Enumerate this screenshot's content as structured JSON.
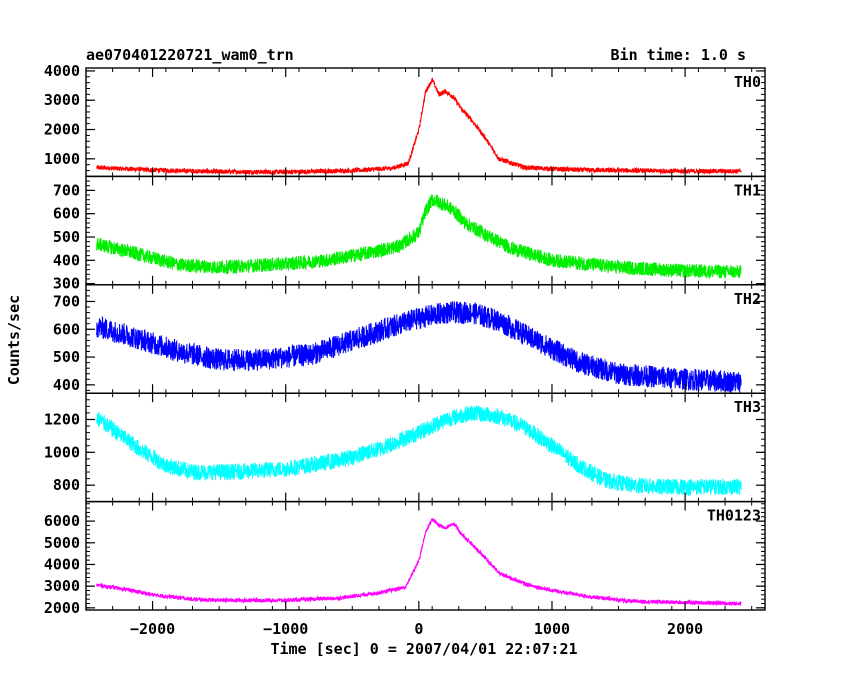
{
  "header": {
    "title": "ae070401220721_wam0_trn",
    "bin_time": "Bin time: 1.0 s"
  },
  "axes": {
    "ylabel": "Counts/sec",
    "xlabel": "Time [sec] 0 = 2007/04/01 22:07:21",
    "xlim": [
      -2500,
      2600
    ],
    "xticks": [
      -2000,
      -1000,
      0,
      1000,
      2000
    ],
    "xtick_labels": [
      "−2000",
      "−1000",
      "0",
      "1000",
      "2000"
    ]
  },
  "chart_data": [
    {
      "type": "line",
      "name": "TH0",
      "color": "#ff0000",
      "ylim": [
        400,
        4100
      ],
      "yticks": [
        1000,
        2000,
        3000,
        4000
      ],
      "noise": 80,
      "x": [
        -2420,
        -2000,
        -1500,
        -1000,
        -500,
        -200,
        -80,
        0,
        50,
        100,
        150,
        200,
        260,
        320,
        400,
        500,
        600,
        800,
        1200,
        1600,
        2000,
        2420
      ],
      "values": [
        700,
        620,
        560,
        550,
        600,
        680,
        850,
        2000,
        3300,
        3700,
        3200,
        3300,
        3100,
        2700,
        2300,
        1700,
        1000,
        700,
        620,
        600,
        580,
        580
      ]
    },
    {
      "type": "line",
      "name": "TH1",
      "color": "#00ee00",
      "ylim": [
        295,
        760
      ],
      "yticks": [
        300,
        400,
        500,
        600,
        700
      ],
      "noise": 30,
      "x": [
        -2420,
        -2200,
        -1800,
        -1500,
        -1000,
        -700,
        -400,
        -150,
        0,
        50,
        100,
        150,
        250,
        350,
        500,
        700,
        1000,
        1500,
        2000,
        2420
      ],
      "values": [
        470,
        440,
        380,
        370,
        385,
        400,
        430,
        460,
        520,
        610,
        660,
        650,
        620,
        560,
        510,
        450,
        400,
        370,
        355,
        350
      ]
    },
    {
      "type": "line",
      "name": "TH2",
      "color": "#0000ff",
      "ylim": [
        370,
        760
      ],
      "yticks": [
        400,
        500,
        600,
        700
      ],
      "noise": 40,
      "x": [
        -2420,
        -2200,
        -1800,
        -1500,
        -1200,
        -800,
        -500,
        -200,
        0,
        200,
        400,
        600,
        800,
        1000,
        1200,
        1500,
        2000,
        2420
      ],
      "values": [
        610,
        580,
        520,
        490,
        490,
        510,
        560,
        610,
        640,
        660,
        660,
        630,
        580,
        530,
        480,
        440,
        420,
        410
      ]
    },
    {
      "type": "line",
      "name": "TH3",
      "color": "#00ffff",
      "ylim": [
        700,
        1360
      ],
      "yticks": [
        800,
        1000,
        1200
      ],
      "noise": 50,
      "x": [
        -2420,
        -2300,
        -2100,
        -1900,
        -1700,
        -1400,
        -1000,
        -600,
        -300,
        0,
        200,
        400,
        600,
        800,
        1000,
        1200,
        1400,
        1600,
        1800,
        2000,
        2420
      ],
      "values": [
        1210,
        1140,
        1020,
        920,
        880,
        880,
        900,
        950,
        1020,
        1120,
        1200,
        1240,
        1220,
        1150,
        1040,
        920,
        830,
        800,
        790,
        790,
        790
      ]
    },
    {
      "type": "line",
      "name": "TH0123",
      "color": "#ff00ff",
      "ylim": [
        1900,
        6900
      ],
      "yticks": [
        2000,
        3000,
        4000,
        5000,
        6000
      ],
      "noise": 90,
      "x": [
        -2420,
        -2200,
        -2000,
        -1700,
        -1500,
        -1000,
        -600,
        -300,
        -100,
        0,
        50,
        100,
        150,
        200,
        260,
        320,
        400,
        500,
        600,
        800,
        1000,
        1300,
        1600,
        2000,
        2420
      ],
      "values": [
        3050,
        2850,
        2600,
        2400,
        2350,
        2350,
        2450,
        2700,
        2950,
        4200,
        5500,
        6100,
        5800,
        5700,
        5900,
        5400,
        4900,
        4300,
        3600,
        3100,
        2800,
        2500,
        2300,
        2250,
        2200
      ]
    }
  ]
}
